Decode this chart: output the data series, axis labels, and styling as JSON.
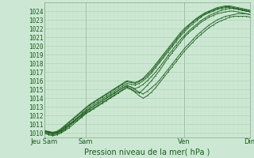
{
  "xlabel": "Pression niveau de la mer( hPa )",
  "ylim": [
    1009.5,
    1025.0
  ],
  "xlim": [
    0,
    100
  ],
  "yticks": [
    1010,
    1011,
    1012,
    1013,
    1014,
    1015,
    1016,
    1017,
    1018,
    1019,
    1020,
    1021,
    1022,
    1023,
    1024
  ],
  "xtick_positions": [
    0,
    20,
    68,
    100
  ],
  "xtick_labels": [
    "Jeu Sam",
    "Sam",
    "Ven",
    "Dim"
  ],
  "bg_color": "#cce8d4",
  "grid_major_color": "#aaccaa",
  "grid_minor_color": "#bbddbb",
  "line_color": "#1a5c1a",
  "lines": [
    {
      "x": [
        0,
        2,
        4,
        6,
        8,
        10,
        12,
        14,
        16,
        18,
        20,
        22,
        24,
        26,
        28,
        30,
        32,
        34,
        36,
        38,
        40,
        42,
        44,
        46,
        48,
        50,
        52,
        54,
        56,
        58,
        60,
        62,
        64,
        66,
        68,
        70,
        72,
        74,
        76,
        78,
        80,
        82,
        84,
        86,
        88,
        90,
        92,
        94,
        96,
        98,
        100
      ],
      "y": [
        1010.2,
        1010.1,
        1010.0,
        1010.1,
        1010.3,
        1010.7,
        1011.0,
        1011.3,
        1011.7,
        1012.0,
        1012.4,
        1012.8,
        1013.1,
        1013.4,
        1013.7,
        1014.0,
        1014.3,
        1014.6,
        1014.9,
        1015.2,
        1015.4,
        1015.3,
        1015.1,
        1015.3,
        1015.6,
        1016.0,
        1016.5,
        1017.0,
        1017.6,
        1018.2,
        1018.9,
        1019.5,
        1020.1,
        1020.7,
        1021.2,
        1021.7,
        1022.1,
        1022.5,
        1022.9,
        1023.2,
        1023.5,
        1023.7,
        1023.9,
        1024.1,
        1024.2,
        1024.3,
        1024.3,
        1024.2,
        1024.1,
        1024.0,
        1023.9
      ]
    },
    {
      "x": [
        0,
        2,
        4,
        6,
        8,
        10,
        12,
        14,
        16,
        18,
        20,
        22,
        24,
        26,
        28,
        30,
        32,
        34,
        36,
        38,
        40,
        42,
        44,
        46,
        48,
        50,
        52,
        54,
        56,
        58,
        60,
        62,
        64,
        66,
        68,
        70,
        72,
        74,
        76,
        78,
        80,
        82,
        84,
        86,
        88,
        90,
        92,
        94,
        96,
        98,
        100
      ],
      "y": [
        1010.0,
        1009.9,
        1009.8,
        1009.9,
        1010.1,
        1010.4,
        1010.8,
        1011.2,
        1011.5,
        1011.9,
        1012.3,
        1012.6,
        1012.9,
        1013.2,
        1013.5,
        1013.8,
        1014.1,
        1014.4,
        1014.7,
        1015.0,
        1015.3,
        1015.1,
        1014.8,
        1014.6,
        1015.0,
        1015.5,
        1016.0,
        1016.6,
        1017.2,
        1017.9,
        1018.6,
        1019.2,
        1019.8,
        1020.4,
        1021.0,
        1021.5,
        1021.9,
        1022.3,
        1022.7,
        1023.0,
        1023.3,
        1023.5,
        1023.7,
        1023.8,
        1023.9,
        1024.0,
        1024.0,
        1023.9,
        1023.8,
        1023.7,
        1023.6
      ]
    },
    {
      "x": [
        0,
        2,
        4,
        6,
        8,
        10,
        12,
        14,
        16,
        18,
        20,
        22,
        24,
        26,
        28,
        30,
        32,
        34,
        36,
        38,
        40,
        42,
        44,
        46,
        48,
        50,
        52,
        54,
        56,
        58,
        60,
        62,
        64,
        66,
        68,
        70,
        72,
        74,
        76,
        78,
        80,
        82,
        84,
        86,
        88,
        90,
        92,
        94,
        96,
        98,
        100
      ],
      "y": [
        1010.3,
        1010.2,
        1010.1,
        1010.2,
        1010.5,
        1010.9,
        1011.3,
        1011.7,
        1012.1,
        1012.5,
        1012.9,
        1013.3,
        1013.6,
        1013.9,
        1014.2,
        1014.5,
        1014.8,
        1015.1,
        1015.4,
        1015.7,
        1016.0,
        1015.9,
        1015.8,
        1016.0,
        1016.3,
        1016.8,
        1017.3,
        1017.9,
        1018.5,
        1019.1,
        1019.7,
        1020.3,
        1020.9,
        1021.5,
        1022.0,
        1022.4,
        1022.8,
        1023.2,
        1023.5,
        1023.8,
        1024.0,
        1024.2,
        1024.4,
        1024.5,
        1024.6,
        1024.6,
        1024.5,
        1024.4,
        1024.3,
        1024.2,
        1024.1
      ]
    },
    {
      "x": [
        0,
        2,
        4,
        6,
        8,
        10,
        12,
        14,
        16,
        18,
        20,
        22,
        24,
        26,
        28,
        30,
        32,
        34,
        36,
        38,
        40,
        42,
        44,
        46,
        48,
        50,
        52,
        54,
        56,
        58,
        60,
        62,
        64,
        66,
        68,
        70,
        72,
        74,
        76,
        78,
        80,
        82,
        84,
        86,
        88,
        90,
        92,
        94,
        96,
        98,
        100
      ],
      "y": [
        1010.1,
        1010.0,
        1009.9,
        1010.0,
        1010.2,
        1010.5,
        1010.9,
        1011.3,
        1011.7,
        1012.1,
        1012.5,
        1012.8,
        1013.1,
        1013.4,
        1013.7,
        1014.0,
        1014.3,
        1014.6,
        1014.9,
        1015.2,
        1015.5,
        1015.3,
        1015.0,
        1014.7,
        1014.5,
        1014.8,
        1015.2,
        1015.6,
        1016.1,
        1016.7,
        1017.3,
        1017.9,
        1018.5,
        1019.1,
        1019.7,
        1020.2,
        1020.7,
        1021.2,
        1021.6,
        1022.0,
        1022.4,
        1022.7,
        1023.0,
        1023.2,
        1023.4,
        1023.5,
        1023.6,
        1023.7,
        1023.7,
        1023.7,
        1023.6
      ]
    },
    {
      "x": [
        0,
        2,
        4,
        6,
        8,
        10,
        12,
        14,
        16,
        18,
        20,
        22,
        24,
        26,
        28,
        30,
        32,
        34,
        36,
        38,
        40,
        42,
        44,
        46,
        48,
        50,
        52,
        54,
        56,
        58,
        60,
        62,
        64,
        66,
        68,
        70,
        72,
        74,
        76,
        78,
        80,
        82,
        84,
        86,
        88,
        90,
        92,
        94,
        96,
        98,
        100
      ],
      "y": [
        1010.0,
        1009.8,
        1009.7,
        1009.8,
        1010.0,
        1010.3,
        1010.6,
        1011.0,
        1011.4,
        1011.8,
        1012.2,
        1012.5,
        1012.8,
        1013.1,
        1013.4,
        1013.7,
        1014.0,
        1014.3,
        1014.6,
        1014.9,
        1015.2,
        1015.0,
        1014.7,
        1014.3,
        1014.0,
        1014.3,
        1014.7,
        1015.2,
        1015.8,
        1016.4,
        1017.0,
        1017.6,
        1018.2,
        1018.8,
        1019.4,
        1019.9,
        1020.4,
        1020.9,
        1021.3,
        1021.7,
        1022.1,
        1022.4,
        1022.7,
        1022.9,
        1023.1,
        1023.3,
        1023.4,
        1023.4,
        1023.4,
        1023.4,
        1023.3
      ]
    },
    {
      "x": [
        0,
        2,
        4,
        6,
        8,
        10,
        12,
        14,
        16,
        18,
        20,
        22,
        24,
        26,
        28,
        30,
        32,
        34,
        36,
        38,
        40,
        42,
        44,
        46,
        48,
        50,
        52,
        54,
        56,
        58,
        60,
        62,
        64,
        66,
        68,
        70,
        72,
        74,
        76,
        78,
        80,
        82,
        84,
        86,
        88,
        90,
        92,
        94,
        96,
        98,
        100
      ],
      "y": [
        1010.2,
        1010.1,
        1010.0,
        1010.1,
        1010.4,
        1010.8,
        1011.2,
        1011.6,
        1012.0,
        1012.4,
        1012.8,
        1013.2,
        1013.5,
        1013.8,
        1014.1,
        1014.4,
        1014.7,
        1015.0,
        1015.3,
        1015.6,
        1015.9,
        1015.8,
        1015.7,
        1015.9,
        1016.2,
        1016.6,
        1017.1,
        1017.7,
        1018.3,
        1018.9,
        1019.5,
        1020.1,
        1020.7,
        1021.3,
        1021.8,
        1022.3,
        1022.7,
        1023.1,
        1023.4,
        1023.7,
        1023.9,
        1024.1,
        1024.3,
        1024.4,
        1024.5,
        1024.5,
        1024.4,
        1024.3,
        1024.2,
        1024.1,
        1024.0
      ]
    },
    {
      "x": [
        0,
        2,
        4,
        6,
        8,
        10,
        12,
        14,
        16,
        18,
        20,
        22,
        24,
        26,
        28,
        30,
        32,
        34,
        36,
        38,
        40,
        42,
        44,
        46,
        48,
        50,
        52,
        54,
        56,
        58,
        60,
        62,
        64,
        66,
        68,
        70,
        72,
        74,
        76,
        78,
        80,
        82,
        84,
        86,
        88,
        90,
        92,
        94,
        96,
        98,
        100
      ],
      "y": [
        1010.2,
        1010.1,
        1010.0,
        1010.1,
        1010.3,
        1010.6,
        1011.0,
        1011.4,
        1011.8,
        1012.2,
        1012.6,
        1013.0,
        1013.3,
        1013.6,
        1013.9,
        1014.2,
        1014.5,
        1014.8,
        1015.1,
        1015.4,
        1015.7,
        1015.6,
        1015.5,
        1015.7,
        1016.0,
        1016.4,
        1016.9,
        1017.5,
        1018.1,
        1018.7,
        1019.3,
        1019.9,
        1020.5,
        1021.1,
        1021.6,
        1022.1,
        1022.5,
        1022.9,
        1023.3,
        1023.6,
        1023.8,
        1024.0,
        1024.2,
        1024.3,
        1024.4,
        1024.4,
        1024.3,
        1024.2,
        1024.1,
        1024.0,
        1023.9
      ]
    }
  ]
}
